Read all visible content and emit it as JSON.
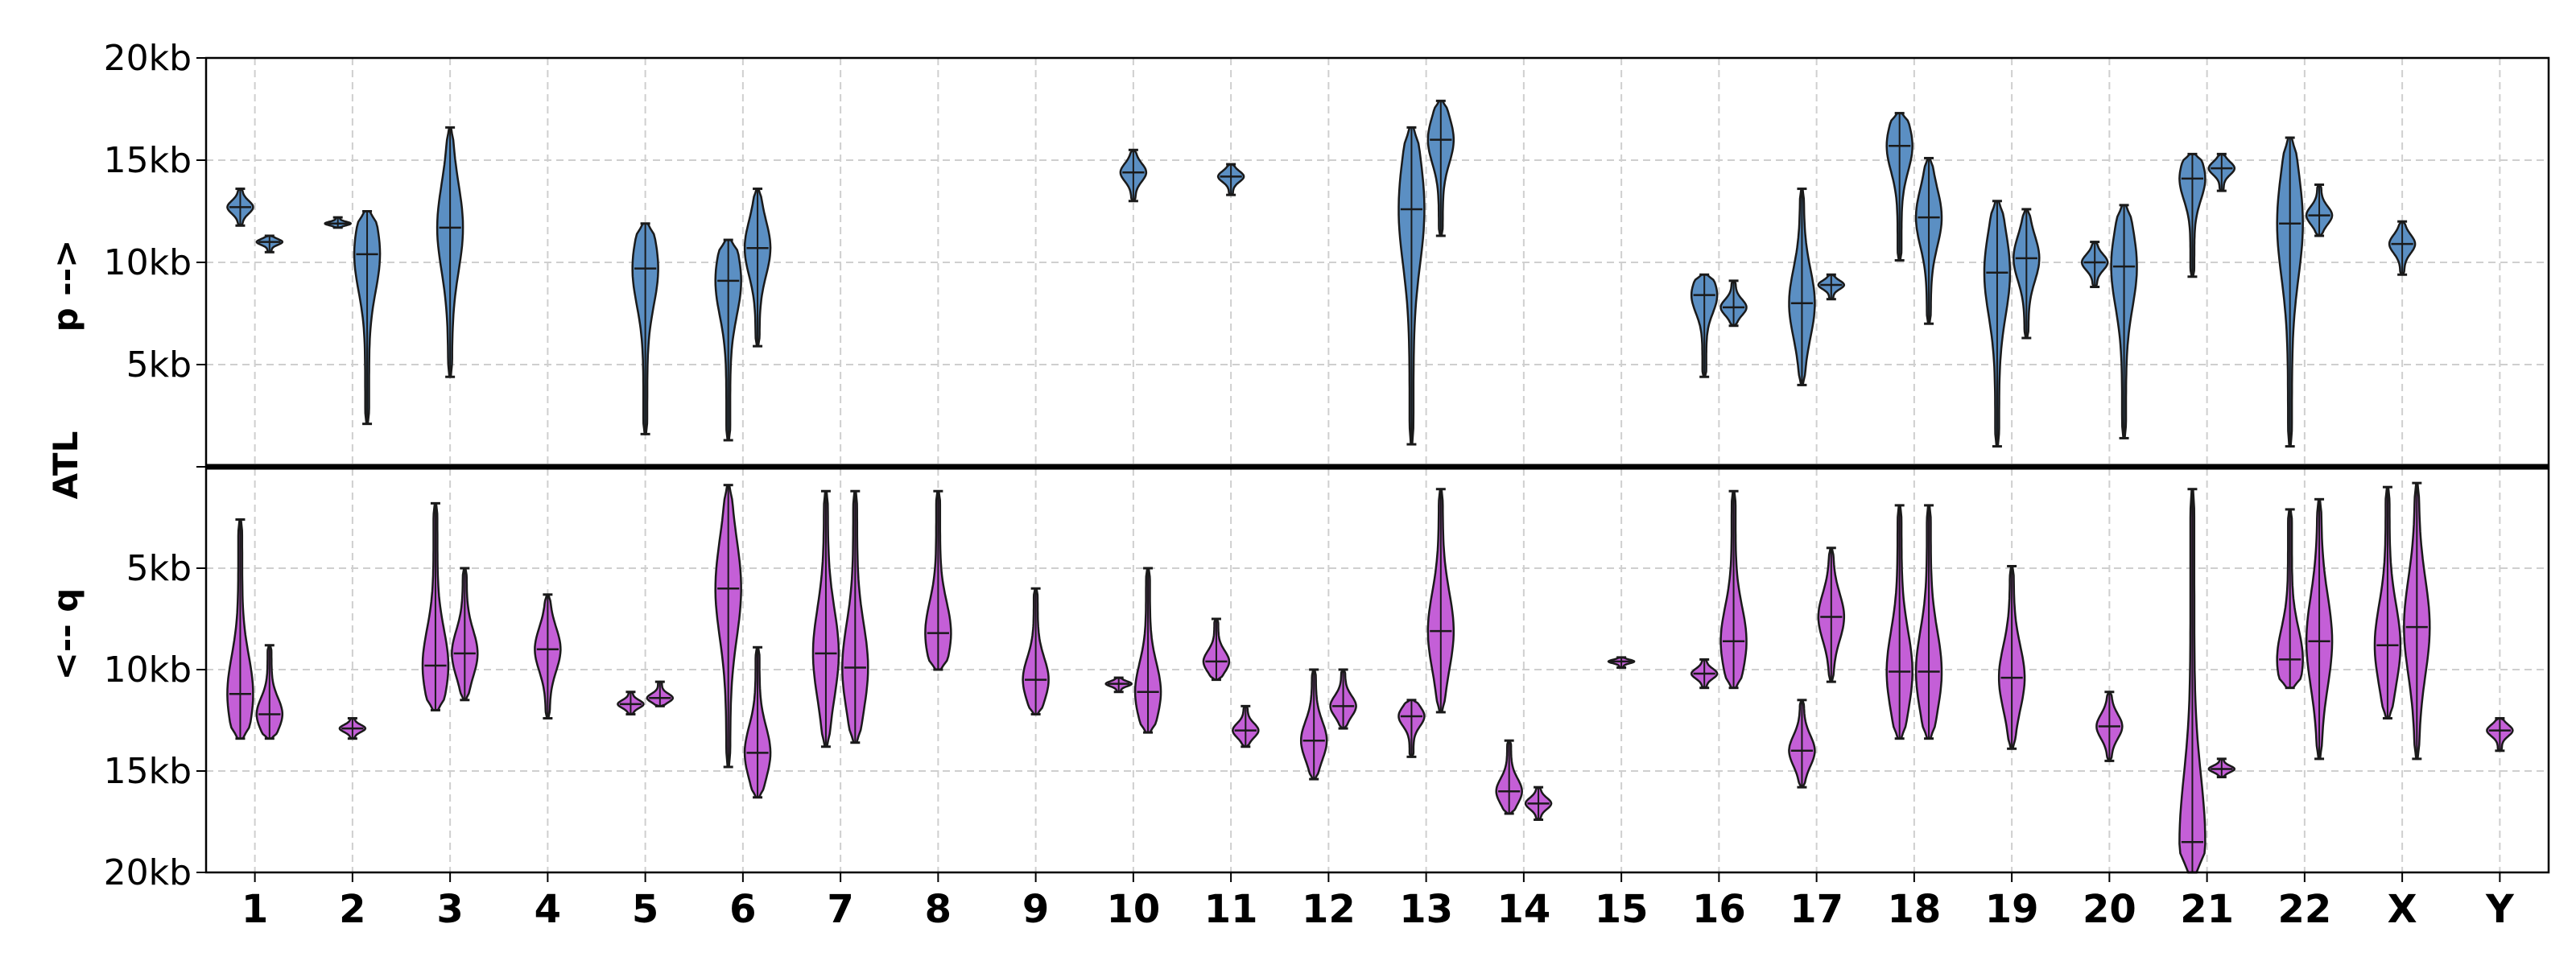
{
  "chart_data": {
    "type": "violin",
    "ylabel": {
      "top": "p -->",
      "middle": "ATL",
      "bottom": "<-- q"
    },
    "y_tick_labels": {
      "p": [
        "5kb",
        "10kb",
        "15kb",
        "20kb"
      ],
      "q": [
        "5kb",
        "10kb",
        "15kb",
        "20kb"
      ]
    },
    "ylim": {
      "p_kb": [
        0,
        20
      ],
      "q_kb": [
        0,
        20
      ]
    },
    "categories": [
      "1",
      "2",
      "3",
      "4",
      "5",
      "6",
      "7",
      "8",
      "9",
      "10",
      "11",
      "12",
      "13",
      "14",
      "15",
      "16",
      "17",
      "18",
      "19",
      "20",
      "21",
      "22",
      "X",
      "Y"
    ],
    "grid": true,
    "colors": {
      "p": "#5b8fc3",
      "q": "#c45fd7",
      "edge": "#1a1a1a"
    },
    "p_arm": [
      {
        "chrom": "1",
        "slot": "left",
        "min": 11.8,
        "max": 13.6,
        "median": 12.7
      },
      {
        "chrom": "1",
        "slot": "right",
        "min": 10.5,
        "max": 11.3,
        "median": 11.0
      },
      {
        "chrom": "2",
        "slot": "left",
        "min": 11.7,
        "max": 12.2,
        "median": 11.9
      },
      {
        "chrom": "2",
        "slot": "right",
        "min": 2.1,
        "max": 12.5,
        "median": 10.4
      },
      {
        "chrom": "3",
        "slot": "center",
        "min": 4.4,
        "max": 16.6,
        "median": 11.7
      },
      {
        "chrom": "5",
        "slot": "center",
        "min": 1.6,
        "max": 11.9,
        "median": 9.7
      },
      {
        "chrom": "6",
        "slot": "left",
        "min": 1.3,
        "max": 11.1,
        "median": 9.1
      },
      {
        "chrom": "6",
        "slot": "right",
        "min": 5.9,
        "max": 13.6,
        "median": 10.7
      },
      {
        "chrom": "10",
        "slot": "center",
        "min": 13.0,
        "max": 15.5,
        "median": 14.4
      },
      {
        "chrom": "11",
        "slot": "center",
        "min": 13.3,
        "max": 14.8,
        "median": 14.2
      },
      {
        "chrom": "13",
        "slot": "left",
        "min": 1.1,
        "max": 16.6,
        "median": 12.6
      },
      {
        "chrom": "13",
        "slot": "right",
        "min": 11.3,
        "max": 17.9,
        "median": 16.0
      },
      {
        "chrom": "16",
        "slot": "left",
        "min": 4.4,
        "max": 9.4,
        "median": 8.4
      },
      {
        "chrom": "16",
        "slot": "right",
        "min": 6.9,
        "max": 9.1,
        "median": 7.8
      },
      {
        "chrom": "17",
        "slot": "left",
        "min": 4.0,
        "max": 13.6,
        "median": 8.0
      },
      {
        "chrom": "17",
        "slot": "right",
        "min": 8.2,
        "max": 9.4,
        "median": 8.9
      },
      {
        "chrom": "18",
        "slot": "left",
        "min": 10.1,
        "max": 17.3,
        "median": 15.7
      },
      {
        "chrom": "18",
        "slot": "right",
        "min": 7.0,
        "max": 15.1,
        "median": 12.2
      },
      {
        "chrom": "19",
        "slot": "left",
        "min": 1.0,
        "max": 13.0,
        "median": 9.5
      },
      {
        "chrom": "19",
        "slot": "right",
        "min": 6.3,
        "max": 12.6,
        "median": 10.2
      },
      {
        "chrom": "20",
        "slot": "left",
        "min": 8.8,
        "max": 11.0,
        "median": 10.0
      },
      {
        "chrom": "20",
        "slot": "right",
        "min": 1.4,
        "max": 12.8,
        "median": 9.8
      },
      {
        "chrom": "21",
        "slot": "left",
        "min": 9.3,
        "max": 15.3,
        "median": 14.1
      },
      {
        "chrom": "21",
        "slot": "right",
        "min": 13.5,
        "max": 15.3,
        "median": 14.6
      },
      {
        "chrom": "22",
        "slot": "left",
        "min": 1.0,
        "max": 16.1,
        "median": 11.9
      },
      {
        "chrom": "22",
        "slot": "right",
        "min": 11.3,
        "max": 13.8,
        "median": 12.3
      },
      {
        "chrom": "X",
        "slot": "center",
        "min": 9.4,
        "max": 12.0,
        "median": 10.9
      }
    ],
    "q_arm": [
      {
        "chrom": "1",
        "slot": "left",
        "min": 2.6,
        "max": 13.4,
        "median": 11.2
      },
      {
        "chrom": "1",
        "slot": "right",
        "min": 8.8,
        "max": 13.4,
        "median": 12.2
      },
      {
        "chrom": "2",
        "slot": "center",
        "min": 12.4,
        "max": 13.4,
        "median": 12.9
      },
      {
        "chrom": "3",
        "slot": "left",
        "min": 1.8,
        "max": 12.0,
        "median": 9.8
      },
      {
        "chrom": "3",
        "slot": "right",
        "min": 5.0,
        "max": 11.5,
        "median": 9.2
      },
      {
        "chrom": "4",
        "slot": "center",
        "min": 6.3,
        "max": 12.4,
        "median": 9.0
      },
      {
        "chrom": "5",
        "slot": "left",
        "min": 11.1,
        "max": 12.2,
        "median": 11.7
      },
      {
        "chrom": "5",
        "slot": "right",
        "min": 10.6,
        "max": 11.8,
        "median": 11.4
      },
      {
        "chrom": "6",
        "slot": "left",
        "min": 0.9,
        "max": 14.8,
        "median": 6.0
      },
      {
        "chrom": "6",
        "slot": "right",
        "min": 8.9,
        "max": 16.3,
        "median": 14.1
      },
      {
        "chrom": "7",
        "slot": "left",
        "min": 1.2,
        "max": 13.8,
        "median": 9.2
      },
      {
        "chrom": "7",
        "slot": "right",
        "min": 1.2,
        "max": 13.6,
        "median": 9.9
      },
      {
        "chrom": "8",
        "slot": "center",
        "min": 1.2,
        "max": 10.0,
        "median": 8.2
      },
      {
        "chrom": "9",
        "slot": "center",
        "min": 6.0,
        "max": 12.2,
        "median": 10.5
      },
      {
        "chrom": "10",
        "slot": "left",
        "min": 10.4,
        "max": 11.1,
        "median": 10.7
      },
      {
        "chrom": "10",
        "slot": "right",
        "min": 5.0,
        "max": 13.1,
        "median": 11.1
      },
      {
        "chrom": "11",
        "slot": "left",
        "min": 7.5,
        "max": 10.5,
        "median": 9.6
      },
      {
        "chrom": "11",
        "slot": "right",
        "min": 11.8,
        "max": 13.8,
        "median": 13.0
      },
      {
        "chrom": "12",
        "slot": "left",
        "min": 10.0,
        "max": 15.4,
        "median": 13.5
      },
      {
        "chrom": "12",
        "slot": "right",
        "min": 10.0,
        "max": 12.9,
        "median": 11.8
      },
      {
        "chrom": "13",
        "slot": "left",
        "min": 11.5,
        "max": 14.3,
        "median": 12.3
      },
      {
        "chrom": "13",
        "slot": "right",
        "min": 1.1,
        "max": 12.1,
        "median": 8.1
      },
      {
        "chrom": "14",
        "slot": "left",
        "min": 13.5,
        "max": 17.1,
        "median": 16.0
      },
      {
        "chrom": "14",
        "slot": "right",
        "min": 15.8,
        "max": 17.4,
        "median": 16.6
      },
      {
        "chrom": "15",
        "slot": "center",
        "min": 9.4,
        "max": 9.9,
        "median": 9.6
      },
      {
        "chrom": "16",
        "slot": "left",
        "min": 9.5,
        "max": 10.9,
        "median": 10.2
      },
      {
        "chrom": "16",
        "slot": "right",
        "min": 1.2,
        "max": 10.9,
        "median": 8.6
      },
      {
        "chrom": "17",
        "slot": "left",
        "min": 11.5,
        "max": 15.8,
        "median": 14.0
      },
      {
        "chrom": "17",
        "slot": "right",
        "min": 4.0,
        "max": 10.6,
        "median": 7.4
      },
      {
        "chrom": "18",
        "slot": "left",
        "min": 1.9,
        "max": 13.4,
        "median": 10.1
      },
      {
        "chrom": "18",
        "slot": "right",
        "min": 1.9,
        "max": 13.4,
        "median": 10.1
      },
      {
        "chrom": "19",
        "slot": "center",
        "min": 4.9,
        "max": 13.9,
        "median": 10.4
      },
      {
        "chrom": "20",
        "slot": "center",
        "min": 11.1,
        "max": 14.5,
        "median": 12.8
      },
      {
        "chrom": "21",
        "slot": "left",
        "min": 1.1,
        "max": 20.0,
        "median": 18.5
      },
      {
        "chrom": "21",
        "slot": "right",
        "min": 14.4,
        "max": 15.3,
        "median": 14.9
      },
      {
        "chrom": "22",
        "slot": "left",
        "min": 2.1,
        "max": 10.9,
        "median": 9.5
      },
      {
        "chrom": "22",
        "slot": "right",
        "min": 1.6,
        "max": 14.4,
        "median": 8.6
      },
      {
        "chrom": "X",
        "slot": "left",
        "min": 1.0,
        "max": 12.4,
        "median": 8.8
      },
      {
        "chrom": "X",
        "slot": "right",
        "min": 0.8,
        "max": 14.4,
        "median": 7.9
      },
      {
        "chrom": "Y",
        "slot": "center",
        "min": 12.4,
        "max": 14.0,
        "median": 13.0
      }
    ]
  }
}
